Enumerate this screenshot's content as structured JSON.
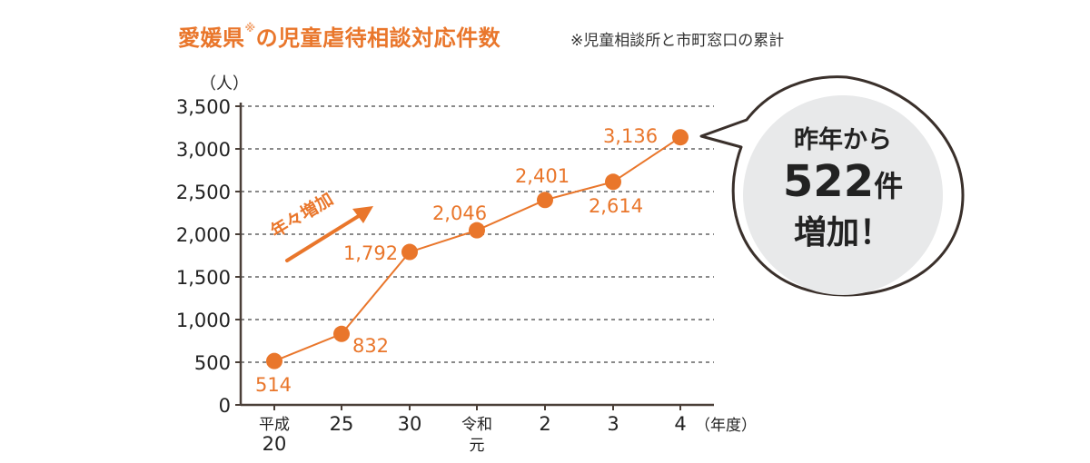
{
  "title": {
    "main_a": "愛媛県",
    "mark": "※",
    "main_b": "の児童虐待相談対応件数",
    "note": "※児童相談所と市町窓口の累計"
  },
  "colors": {
    "accent": "#e9762b",
    "axis": "#4a3f38",
    "grid": "#8a8a8a",
    "bubble_fill": "#e8e9ea",
    "bubble_stroke": "#3a302b"
  },
  "chart_data": {
    "type": "line",
    "title": "愛媛県※の児童虐待相談対応件数",
    "ylabel": "（人）",
    "xlabel": "（年度）",
    "ylim": [
      0,
      3500
    ],
    "yticks": [
      0,
      500,
      1000,
      1500,
      2000,
      2500,
      3000,
      3500
    ],
    "ytick_labels": [
      "0",
      "500",
      "1,000",
      "1,500",
      "2,000",
      "2,500",
      "3,000",
      "3,500"
    ],
    "grid": true,
    "categories": [
      [
        "平成",
        "20"
      ],
      [
        "25"
      ],
      [
        "30"
      ],
      [
        "令和",
        "元"
      ],
      [
        "2"
      ],
      [
        "3"
      ],
      [
        "4"
      ]
    ],
    "series": [
      {
        "values": [
          514,
          832,
          1792,
          2046,
          2401,
          2614,
          3136
        ],
        "labels": [
          "514",
          "832",
          "1,792",
          "2,046",
          "2,401",
          "2,614",
          "3,136"
        ]
      }
    ],
    "annotations": {
      "trend": "年々増加",
      "bubble": [
        "昨年から",
        "522",
        "件",
        "増加！"
      ]
    }
  }
}
